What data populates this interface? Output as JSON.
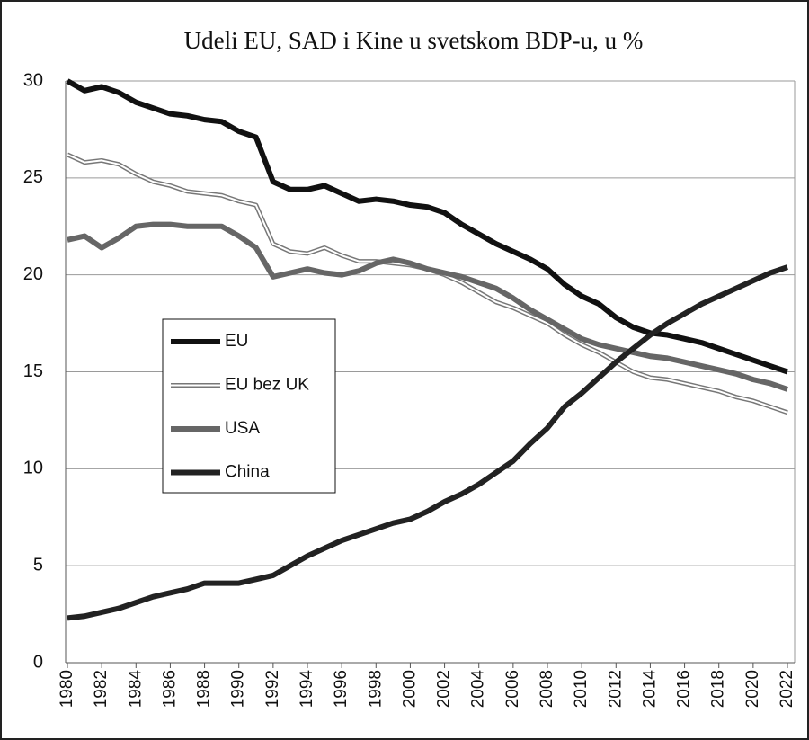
{
  "chart_data": {
    "type": "line",
    "title": "Udeli EU, SAD i Kine u svetskom BDP-u, u %",
    "x": [
      1980,
      1981,
      1982,
      1983,
      1984,
      1985,
      1986,
      1987,
      1988,
      1989,
      1990,
      1991,
      1992,
      1993,
      1994,
      1995,
      1996,
      1997,
      1998,
      1999,
      2000,
      2001,
      2002,
      2003,
      2004,
      2005,
      2006,
      2007,
      2008,
      2009,
      2010,
      2011,
      2012,
      2013,
      2014,
      2015,
      2016,
      2017,
      2018,
      2019,
      2020,
      2021,
      2022
    ],
    "xlim": [
      1980,
      2022
    ],
    "xticks": [
      1980,
      1982,
      1984,
      1986,
      1988,
      1990,
      1992,
      1994,
      1996,
      1998,
      2000,
      2002,
      2004,
      2006,
      2008,
      2010,
      2012,
      2014,
      2016,
      2018,
      2020,
      2022
    ],
    "ylim": [
      0,
      30
    ],
    "yticks": [
      0,
      5,
      10,
      15,
      20,
      25,
      30
    ],
    "grid": true,
    "series": [
      {
        "name": "EU",
        "color": "#111111",
        "values": [
          30,
          29.5,
          29.7,
          29.4,
          28.9,
          28.6,
          28.3,
          28.2,
          28.0,
          27.9,
          27.4,
          27.1,
          24.8,
          24.4,
          24.4,
          24.6,
          24.2,
          23.8,
          23.9,
          23.8,
          23.6,
          23.5,
          23.2,
          22.6,
          22.1,
          21.6,
          21.2,
          20.8,
          20.3,
          19.5,
          18.9,
          18.5,
          17.8,
          17.3,
          17.0,
          16.9,
          16.7,
          16.5,
          16.2,
          15.9,
          15.6,
          15.3,
          15.0
        ]
      },
      {
        "name": "EU bez UK",
        "color": "#777777",
        "line_style": "double",
        "values": [
          26.2,
          25.8,
          25.9,
          25.7,
          25.2,
          24.8,
          24.6,
          24.3,
          24.2,
          24.1,
          23.8,
          23.6,
          21.6,
          21.2,
          21.1,
          21.4,
          21.0,
          20.7,
          20.7,
          20.6,
          20.5,
          20.3,
          20.0,
          19.6,
          19.1,
          18.6,
          18.3,
          17.9,
          17.5,
          16.9,
          16.4,
          16.0,
          15.5,
          15.0,
          14.7,
          14.6,
          14.4,
          14.2,
          14.0,
          13.7,
          13.5,
          13.2,
          12.9
        ]
      },
      {
        "name": "USA",
        "color": "#666666",
        "values": [
          21.8,
          22.0,
          21.4,
          21.9,
          22.5,
          22.6,
          22.6,
          22.5,
          22.5,
          22.5,
          22.0,
          21.4,
          19.9,
          20.1,
          20.3,
          20.1,
          20.0,
          20.2,
          20.6,
          20.8,
          20.6,
          20.3,
          20.1,
          19.9,
          19.6,
          19.3,
          18.8,
          18.2,
          17.7,
          17.2,
          16.7,
          16.4,
          16.2,
          16.0,
          15.8,
          15.7,
          15.5,
          15.3,
          15.1,
          14.9,
          14.6,
          14.4,
          14.1
        ]
      },
      {
        "name": "China",
        "color": "#222222",
        "values": [
          2.3,
          2.4,
          2.6,
          2.8,
          3.1,
          3.4,
          3.6,
          3.8,
          4.1,
          4.1,
          4.1,
          4.3,
          4.5,
          5.0,
          5.5,
          5.9,
          6.3,
          6.6,
          6.9,
          7.2,
          7.4,
          7.8,
          8.3,
          8.7,
          9.2,
          9.8,
          10.4,
          11.3,
          12.1,
          13.2,
          13.9,
          14.7,
          15.5,
          16.2,
          16.9,
          17.5,
          18.0,
          18.5,
          18.9,
          19.3,
          19.7,
          20.1,
          20.4
        ]
      }
    ]
  }
}
